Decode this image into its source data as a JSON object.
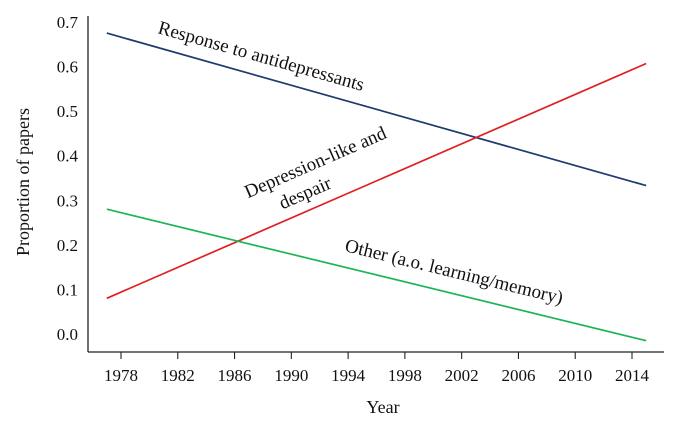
{
  "chart_data": {
    "type": "line",
    "title": "",
    "xlabel": "Year",
    "ylabel": "Proportion of papers",
    "xlim": [
      1976,
      2016
    ],
    "ylim": [
      -0.03,
      0.7
    ],
    "x_ticks": [
      1978,
      1982,
      1986,
      1990,
      1994,
      1998,
      2002,
      2006,
      2010,
      2014
    ],
    "x_tick_labels": [
      "1978",
      "1982",
      "1986",
      "1990",
      "1994",
      "1998",
      "2002",
      "2006",
      "2010",
      "2014"
    ],
    "y_ticks": [
      0.0,
      0.1,
      0.2,
      0.3,
      0.4,
      0.5,
      0.6,
      0.7
    ],
    "y_tick_labels": [
      "0.0",
      "0.1",
      "0.2",
      "0.3",
      "0.4",
      "0.5",
      "0.6",
      "0.7"
    ],
    "grid": false,
    "series": [
      {
        "name": "Response to antidepressants",
        "label_lines": [
          "Response to antidepressants"
        ],
        "color": "#1f3a6e",
        "x": [
          1977,
          2015
        ],
        "values": [
          0.675,
          0.333
        ]
      },
      {
        "name": "Depression-like and despair",
        "label_lines": [
          "Depression-like and",
          "despair"
        ],
        "color": "#e02020",
        "x": [
          1977,
          2015
        ],
        "values": [
          0.08,
          0.607
        ]
      },
      {
        "name": "Other (a.o. learning/memory)",
        "label_lines": [
          "Other (a.o. learning/memory)"
        ],
        "color": "#1db554",
        "x": [
          1977,
          2015
        ],
        "values": [
          0.28,
          -0.015
        ]
      }
    ]
  }
}
